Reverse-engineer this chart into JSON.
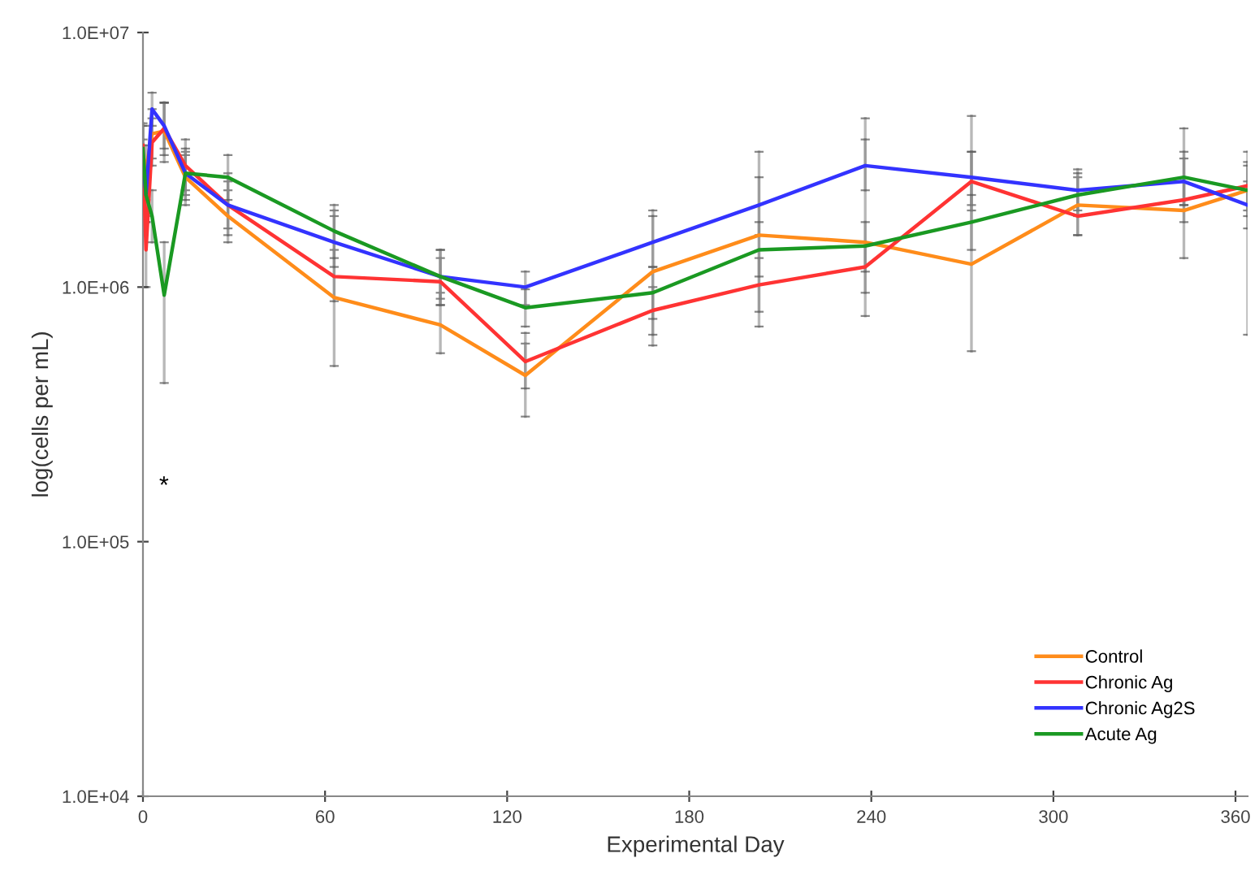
{
  "chart_data": {
    "type": "line",
    "xlabel": "Experimental Day",
    "ylabel": "log(cells per mL)",
    "x": [
      0,
      1,
      3,
      7,
      14,
      28,
      63,
      98,
      126,
      168,
      203,
      238,
      273,
      308,
      343,
      364
    ],
    "series": [
      {
        "name": "Control",
        "color": "#ff8c1a",
        "values": [
          3300000,
          2900000,
          4000000,
          4100000,
          2700000,
          1900000,
          910000,
          710000,
          450000,
          1150000,
          1600000,
          1500000,
          1230000,
          2100000,
          2000000,
          2400000
        ],
        "errors": [
          [
            2400000,
            4300000
          ],
          [
            2200000,
            3600000
          ],
          [
            3200000,
            5000000
          ],
          [
            3100000,
            5300000
          ],
          [
            2100000,
            3400000
          ],
          [
            1500000,
            2400000
          ],
          [
            490000,
            2000000
          ],
          [
            550000,
            950000
          ],
          [
            310000,
            600000
          ],
          [
            590000,
            2000000
          ],
          [
            700000,
            3400000
          ],
          [
            770000,
            4600000
          ],
          [
            560000,
            4700000
          ],
          [
            1600000,
            2700000
          ],
          [
            1300000,
            4200000
          ],
          [
            650000,
            3400000
          ]
        ]
      },
      {
        "name": "Chronic Ag",
        "color": "#ff3333",
        "values": [
          3600000,
          1400000,
          3700000,
          4200000,
          3000000,
          2100000,
          1100000,
          1050000,
          510000,
          810000,
          1020000,
          1200000,
          2600000,
          1900000,
          2200000,
          2500000
        ],
        "errors": [
          [
            2900000,
            4400000
          ],
          [
            1000000,
            1900000
          ],
          [
            3000000,
            4600000
          ],
          [
            3300000,
            5300000
          ],
          [
            2400000,
            3800000
          ],
          [
            1700000,
            2600000
          ],
          [
            880000,
            1400000
          ],
          [
            850000,
            1300000
          ],
          [
            400000,
            660000
          ],
          [
            650000,
            1000000
          ],
          [
            800000,
            1300000
          ],
          [
            950000,
            1500000
          ],
          [
            2000000,
            3400000
          ],
          [
            1600000,
            2300000
          ],
          [
            1800000,
            2700000
          ],
          [
            2000000,
            3100000
          ]
        ]
      },
      {
        "name": "Chronic Ag2S",
        "color": "#3333ff",
        "values": [
          3100000,
          2300000,
          5000000,
          4300000,
          2800000,
          2100000,
          1500000,
          1100000,
          1000000,
          1500000,
          2100000,
          3000000,
          2700000,
          2400000,
          2600000,
          2100000
        ],
        "errors": [
          [
            2500000,
            3800000
          ],
          [
            1800000,
            2900000
          ],
          [
            4300000,
            5800000
          ],
          [
            3500000,
            5300000
          ],
          [
            2300000,
            3300000
          ],
          [
            1600000,
            2800000
          ],
          [
            1200000,
            1900000
          ],
          [
            900000,
            1400000
          ],
          [
            850000,
            1150000
          ],
          [
            1200000,
            1900000
          ],
          [
            1600000,
            2700000
          ],
          [
            2400000,
            3800000
          ],
          [
            2100000,
            3400000
          ],
          [
            2000000,
            2900000
          ],
          [
            2100000,
            3200000
          ],
          [
            1700000,
            2600000
          ]
        ]
      },
      {
        "name": "Acute Ag",
        "color": "#1a9922",
        "values": [
          3500000,
          2300000,
          1900000,
          930000,
          2800000,
          2700000,
          1660000,
          1100000,
          830000,
          950000,
          1400000,
          1450000,
          1800000,
          2300000,
          2700000,
          2400000
        ],
        "errors": [
          [
            2800000,
            4300000
          ],
          [
            1800000,
            2900000
          ],
          [
            1500000,
            2400000
          ],
          [
            420000,
            1500000
          ],
          [
            2200000,
            3500000
          ],
          [
            2200000,
            3300000
          ],
          [
            1300000,
            2100000
          ],
          [
            850000,
            1400000
          ],
          [
            700000,
            980000
          ],
          [
            750000,
            1200000
          ],
          [
            1100000,
            1800000
          ],
          [
            1150000,
            1800000
          ],
          [
            1400000,
            2300000
          ],
          [
            1900000,
            2800000
          ],
          [
            2100000,
            3400000
          ],
          [
            1900000,
            3000000
          ]
        ]
      }
    ],
    "log": "y",
    "xlim": [
      0,
      364
    ],
    "xticks": [
      0,
      60,
      120,
      180,
      240,
      300,
      360
    ],
    "ylim": [
      10000,
      10000000
    ],
    "yticks": [
      {
        "value": 10000,
        "label": "1.0E+04"
      },
      {
        "value": 100000,
        "label": "1.0E+05"
      },
      {
        "value": 1000000,
        "label": "1.0E+06"
      },
      {
        "value": 10000000,
        "label": "1.0E+07"
      }
    ],
    "annotations": [
      "*"
    ],
    "grid": false,
    "legend": "bottom right",
    "marker": "none",
    "line_style": "solid"
  }
}
